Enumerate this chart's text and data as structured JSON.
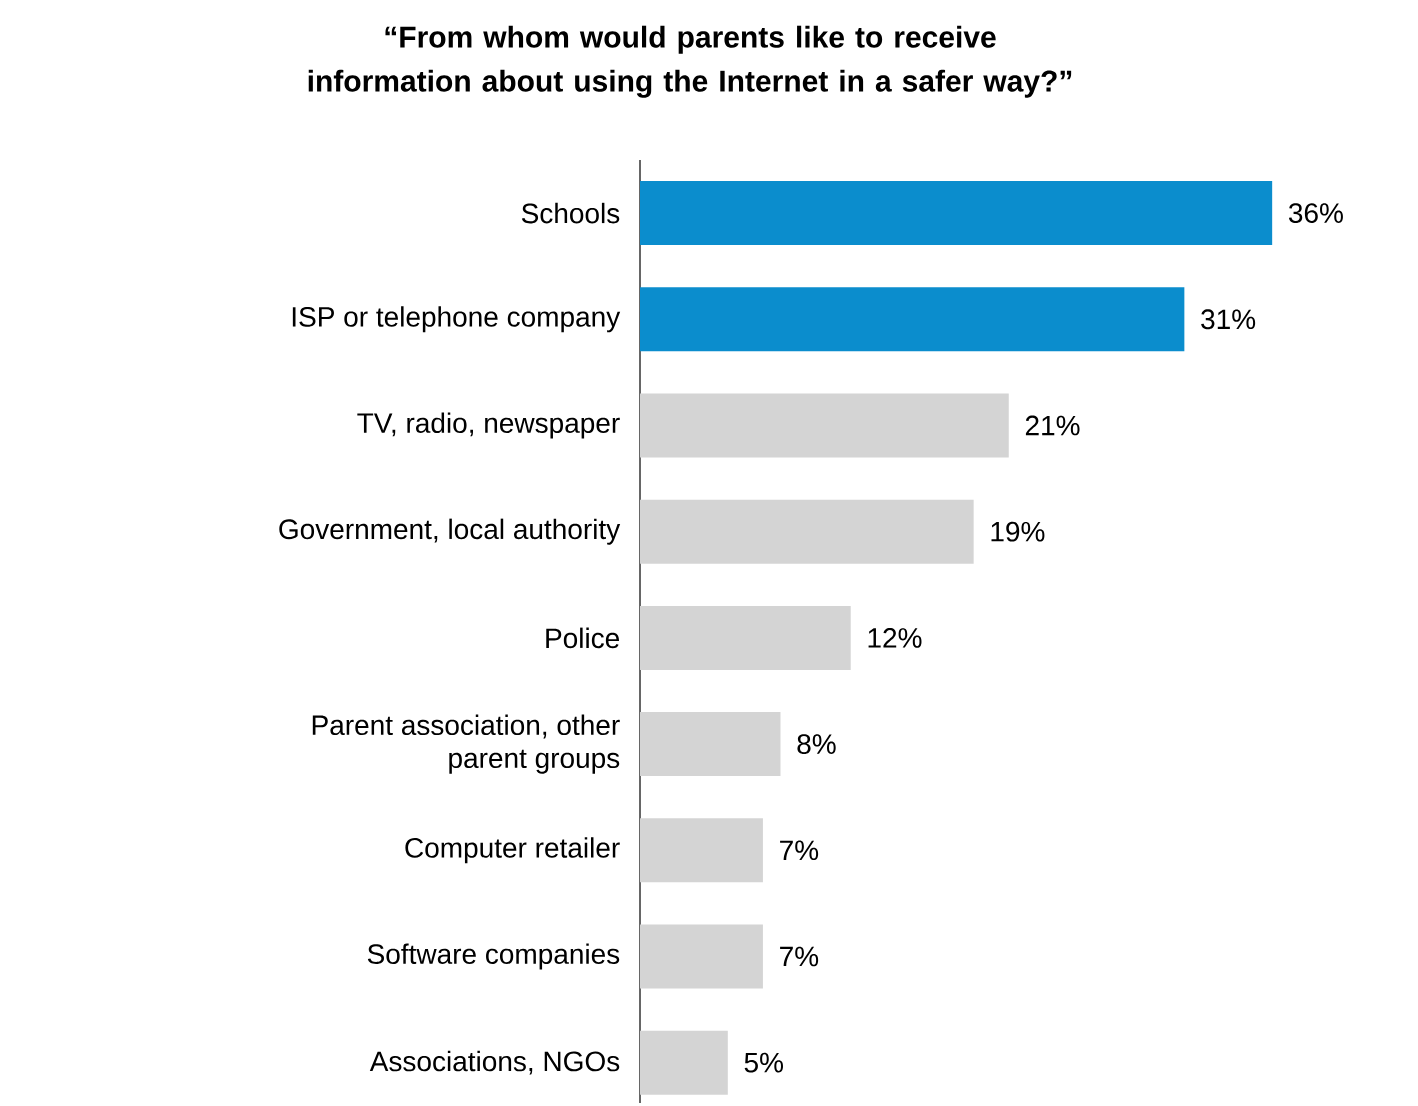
{
  "chart_data": {
    "type": "bar",
    "orientation": "horizontal",
    "title": "“From whom would parents like to receive information about using the Internet in a safer way?”",
    "categories": [
      "Schools",
      "ISP or telephone company",
      "TV, radio, newspaper",
      "Government, local authority",
      "Police",
      "Parent association, other parent groups",
      "Computer retailer",
      "Software companies",
      "Associations, NGOs"
    ],
    "values": [
      36,
      31,
      21,
      19,
      12,
      8,
      7,
      7,
      5
    ],
    "value_labels": [
      "36%",
      "31%",
      "21%",
      "19%",
      "12%",
      "8%",
      "7%",
      "7%",
      "5%"
    ],
    "colors": [
      "#0b8dcd",
      "#0b8dcd",
      "#d4d4d4",
      "#d4d4d4",
      "#d4d4d4",
      "#d4d4d4",
      "#d4d4d4",
      "#d4d4d4",
      "#d4d4d4"
    ]
  }
}
